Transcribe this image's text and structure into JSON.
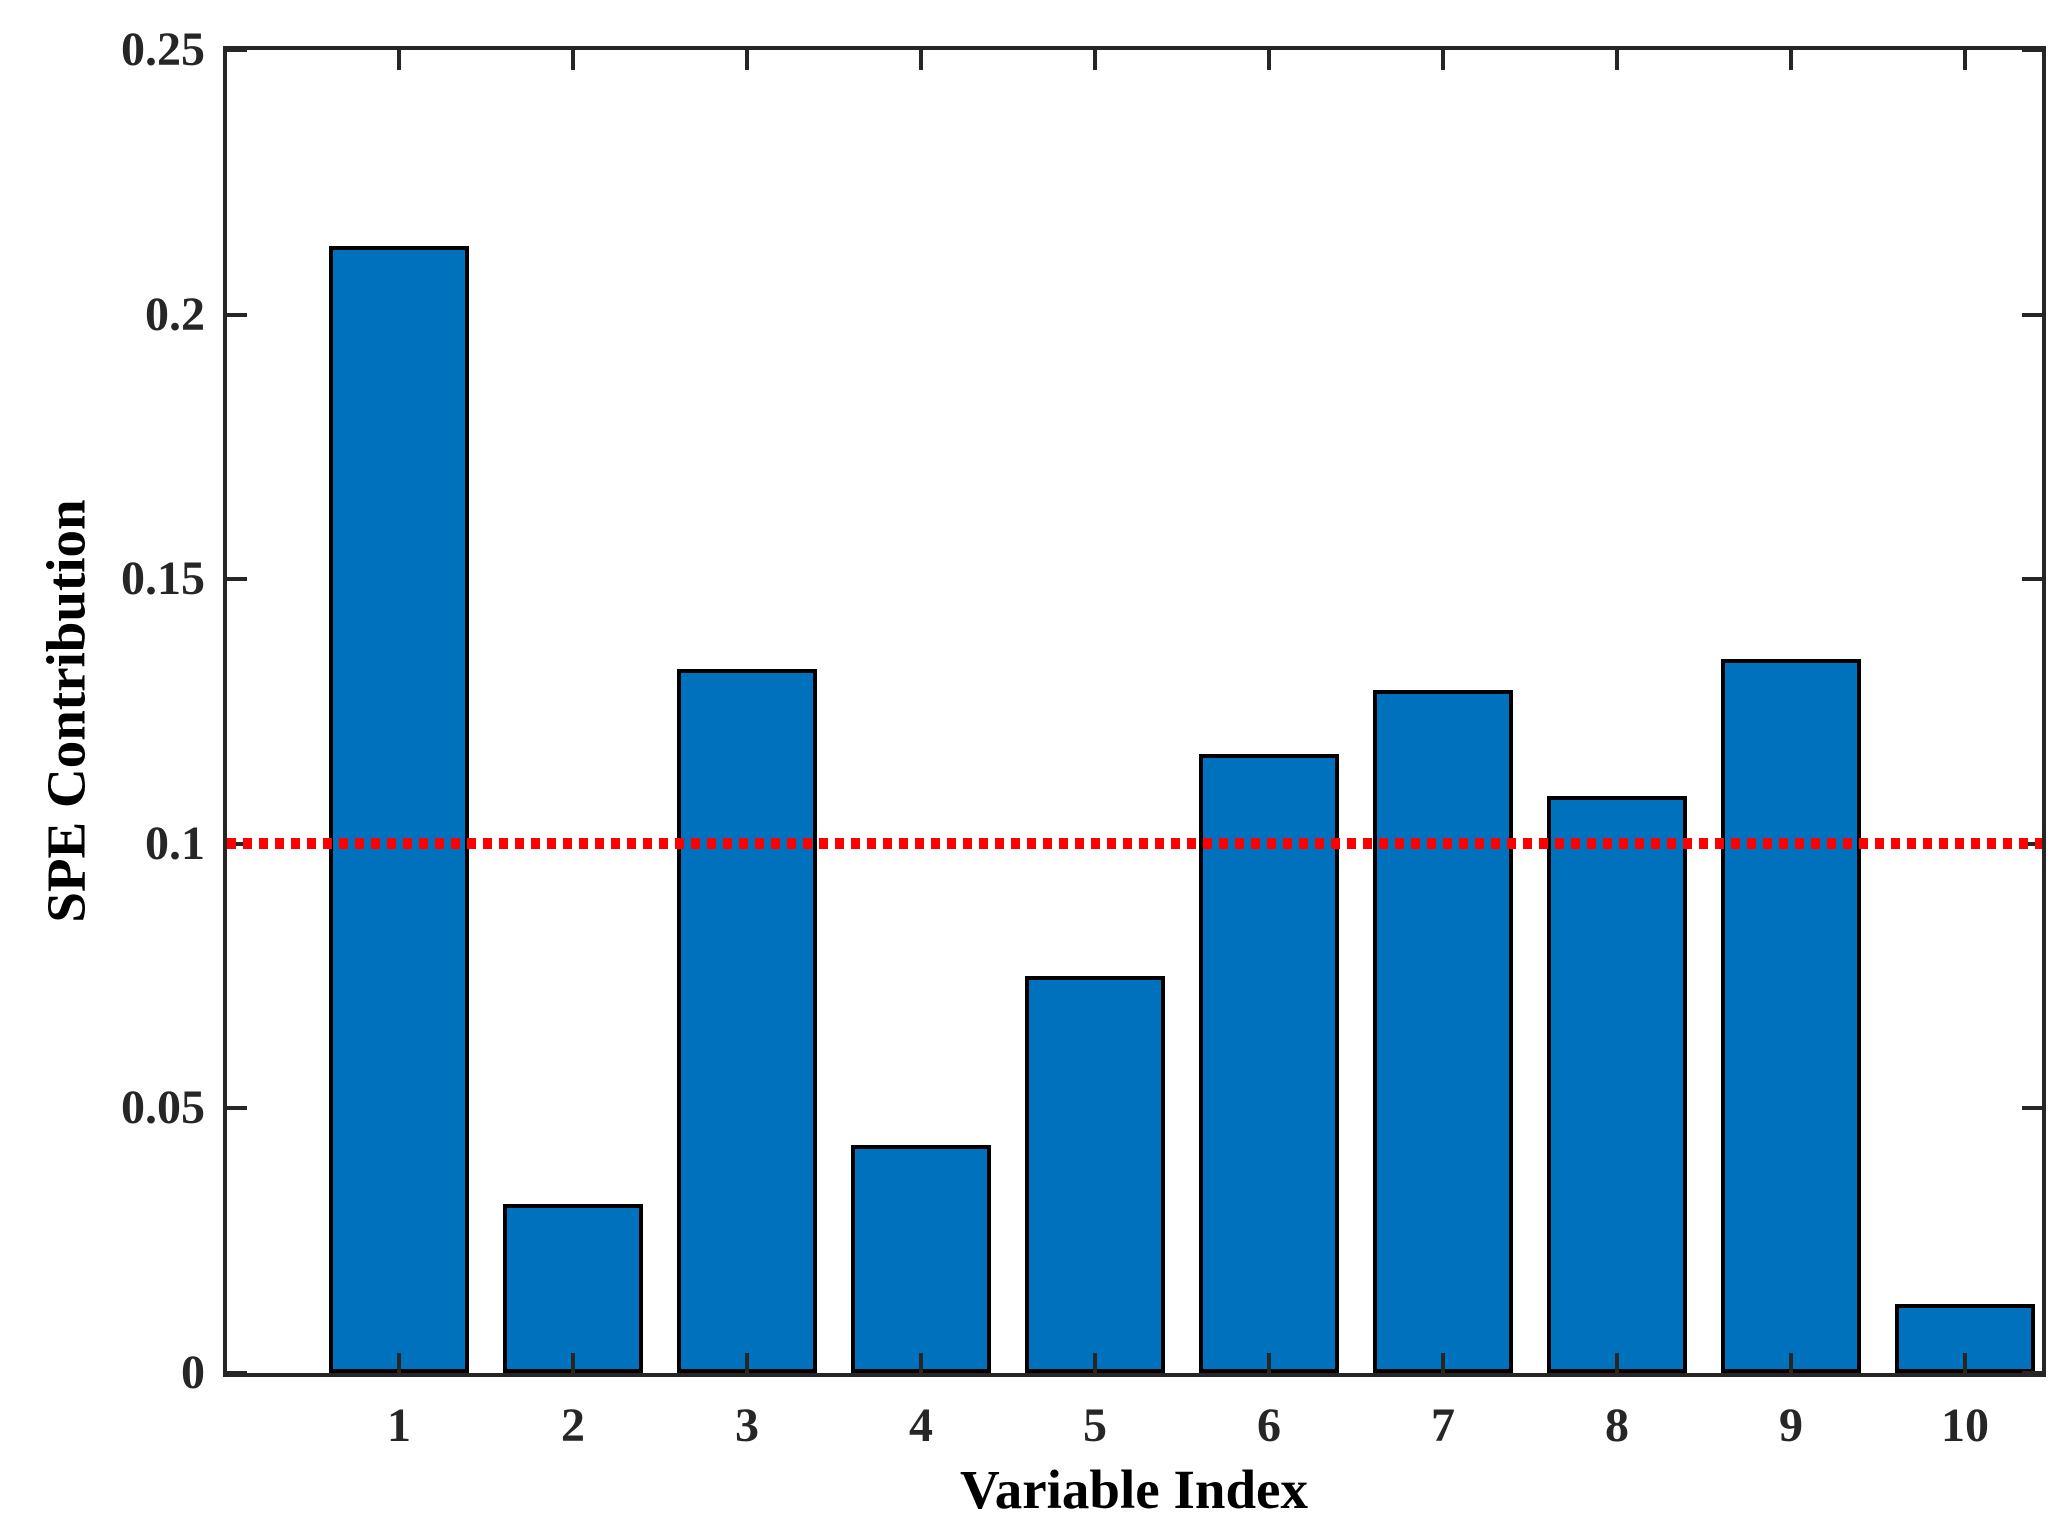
{
  "figure": {
    "background": "#FFFFFF"
  },
  "chart_data": {
    "type": "bar",
    "title": "",
    "xlabel": "Variable Index",
    "ylabel": "SPE Contribution",
    "categories": [
      "1",
      "2",
      "3",
      "4",
      "5",
      "6",
      "7",
      "8",
      "9",
      "10"
    ],
    "values": [
      0.213,
      0.032,
      0.133,
      0.043,
      0.075,
      0.117,
      0.129,
      0.109,
      0.135,
      0.013
    ],
    "ylim": [
      0,
      0.25
    ],
    "yticks": [
      0,
      0.05,
      0.1,
      0.15,
      0.2,
      0.25
    ],
    "ytick_labels": [
      "0",
      "0.05",
      "0.1",
      "0.15",
      "0.2",
      "0.25"
    ],
    "grid": false,
    "legend": null,
    "box": true,
    "tick_direction": "in",
    "bar_color": "#0072BD",
    "bar_edge_color": "#000000",
    "axis_color": "#262626",
    "threshold_line": {
      "value": 0.1,
      "color": "#FF0000",
      "style": "dotted"
    }
  }
}
